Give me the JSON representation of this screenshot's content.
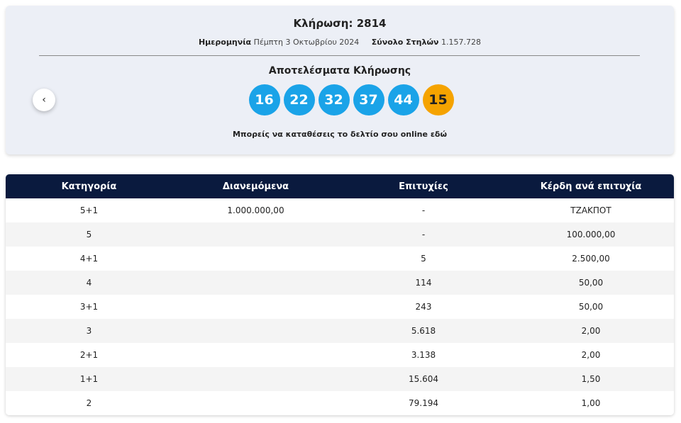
{
  "header": {
    "title": "Κλήρωση: 2814",
    "date_label": "Ημερομηνία",
    "date": "Πέμπτη 3 Οκτωβρίου 2024",
    "columns_label": "Σύνολο Στηλών",
    "columns": "1.157.728"
  },
  "results": {
    "title": "Αποτελέσματα Κλήρωσης",
    "numbers": [
      "16",
      "22",
      "32",
      "37",
      "44"
    ],
    "joker": "15",
    "note": "Μπορείς να καταθέσεις το δελτίο σου online",
    "link": "εδώ"
  },
  "table": {
    "columns": [
      "Κατηγορία",
      "Διανεμόμενα",
      "Επιτυχίες",
      "Κέρδη ανά επιτυχία"
    ],
    "rows": [
      {
        "category": "5+1",
        "distributed": "1.000.000,00",
        "winners": "-",
        "prize": "ΤΖΑΚΠΟΤ"
      },
      {
        "category": "5",
        "winners": "-",
        "prize": "100.000,00"
      },
      {
        "category": "4+1",
        "winners": "5",
        "prize": "2.500,00"
      },
      {
        "category": "4",
        "winners": "114",
        "prize": "50,00"
      },
      {
        "category": "3+1",
        "winners": "243",
        "prize": "50,00"
      },
      {
        "category": "3",
        "winners": "5.618",
        "prize": "2,00"
      },
      {
        "category": "2+1",
        "winners": "3.138",
        "prize": "2,00"
      },
      {
        "category": "1+1",
        "winners": "15.604",
        "prize": "1,50"
      },
      {
        "category": "2",
        "winners": "79.194",
        "prize": "1,00"
      }
    ]
  }
}
